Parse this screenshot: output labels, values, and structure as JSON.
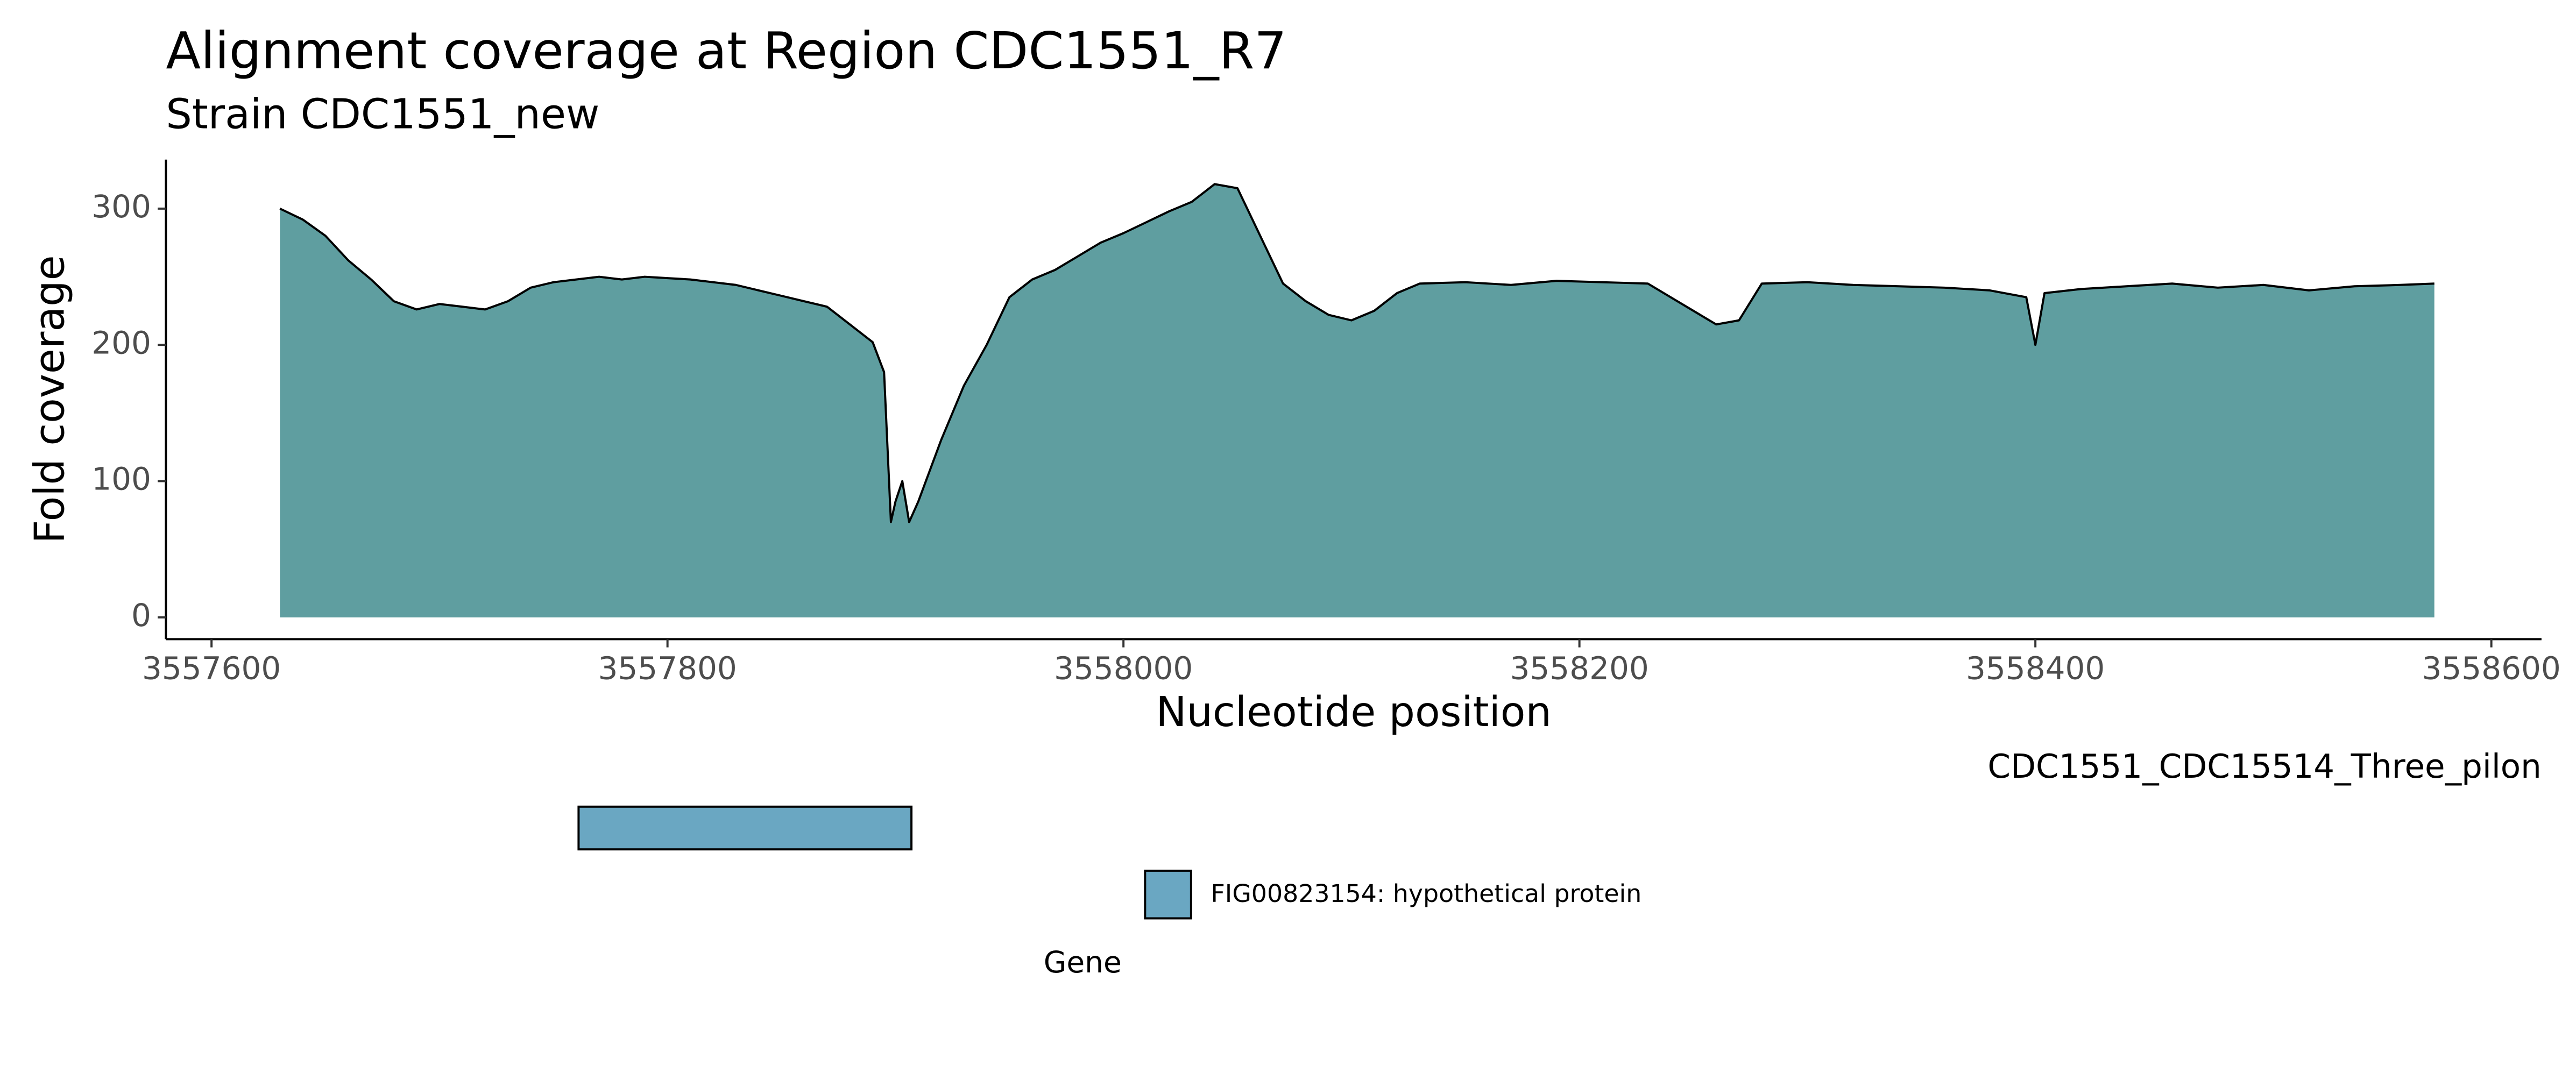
{
  "chart_data": [
    {
      "type": "area",
      "title": "Alignment coverage at Region CDC1551_R7",
      "subtitle": "Strain CDC1551_new",
      "x_label": "Nucleotide position",
      "y_label": "Fold coverage",
      "color": "#5f9ea0",
      "line_color": "#000000",
      "xlim": [
        3557580,
        3558622
      ],
      "ylim": [
        -16,
        336
      ],
      "xticks": [
        3557600,
        3557800,
        3558000,
        3558200,
        3558400,
        3558600
      ],
      "yticks": [
        0,
        100,
        200,
        300
      ],
      "grid": false,
      "x": [
        3557630,
        3557640,
        3557650,
        3557660,
        3557670,
        3557680,
        3557690,
        3557700,
        3557710,
        3557720,
        3557730,
        3557740,
        3557750,
        3557760,
        3557770,
        3557780,
        3557790,
        3557800,
        3557810,
        3557820,
        3557830,
        3557840,
        3557850,
        3557860,
        3557870,
        3557880,
        3557890,
        3557895,
        3557898,
        3557900,
        3557903,
        3557906,
        3557910,
        3557920,
        3557930,
        3557940,
        3557950,
        3557960,
        3557970,
        3557980,
        3557990,
        3558000,
        3558010,
        3558020,
        3558030,
        3558040,
        3558050,
        3558060,
        3558070,
        3558080,
        3558090,
        3558100,
        3558110,
        3558120,
        3558130,
        3558150,
        3558170,
        3558190,
        3558210,
        3558230,
        3558240,
        3558250,
        3558260,
        3558270,
        3558280,
        3558300,
        3558320,
        3558340,
        3558360,
        3558380,
        3558396,
        3558400,
        3558404,
        3558420,
        3558440,
        3558460,
        3558480,
        3558500,
        3558520,
        3558540,
        3558560,
        3558575
      ],
      "values": [
        300,
        292,
        280,
        262,
        248,
        232,
        226,
        230,
        228,
        226,
        232,
        242,
        246,
        248,
        250,
        248,
        250,
        249,
        248,
        246,
        244,
        240,
        236,
        232,
        228,
        215,
        202,
        180,
        70,
        85,
        100,
        70,
        85,
        130,
        170,
        200,
        235,
        248,
        255,
        265,
        275,
        282,
        290,
        298,
        305,
        318,
        315,
        280,
        245,
        232,
        222,
        218,
        225,
        238,
        245,
        246,
        244,
        247,
        246,
        245,
        235,
        225,
        215,
        218,
        245,
        246,
        244,
        243,
        242,
        240,
        235,
        200,
        238,
        241,
        243,
        245,
        242,
        244,
        240,
        243,
        244,
        245
      ]
    },
    {
      "type": "gene",
      "facet_label": "CDC1551_CDC15514_Three_pilon",
      "legend_title": "Gene",
      "xlim": [
        3557580,
        3558622
      ],
      "series": [
        {
          "name": "FIG00823154: hypothetical protein",
          "color": "#6aa7c2",
          "start": 3557761,
          "end": 3557907
        }
      ]
    }
  ]
}
